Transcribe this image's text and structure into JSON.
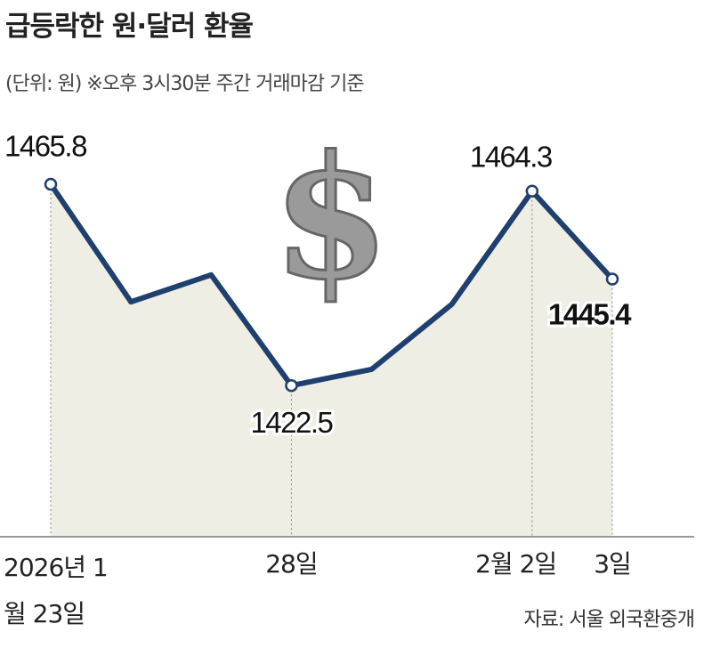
{
  "chart_data": {
    "type": "line",
    "title": "급등락한 원·달러 환율",
    "subtitle": "(단위: 원) ※오후 3시30분 주간 거래마감 기준",
    "source": "자료: 서울 외국환중개",
    "categories": [
      "2026년 1월 23일",
      null,
      null,
      "28일",
      null,
      null,
      "2월 2일",
      "3일"
    ],
    "values": [
      1465.8,
      1440.5,
      1446.3,
      1422.5,
      1426,
      1440,
      1464.3,
      1445.4
    ],
    "value_labels": [
      "1465.8",
      null,
      null,
      "1422.5",
      null,
      null,
      "1464.3",
      "1445.4"
    ],
    "color": "#1f3f6e",
    "ylim": [
      1390,
      1470
    ]
  }
}
